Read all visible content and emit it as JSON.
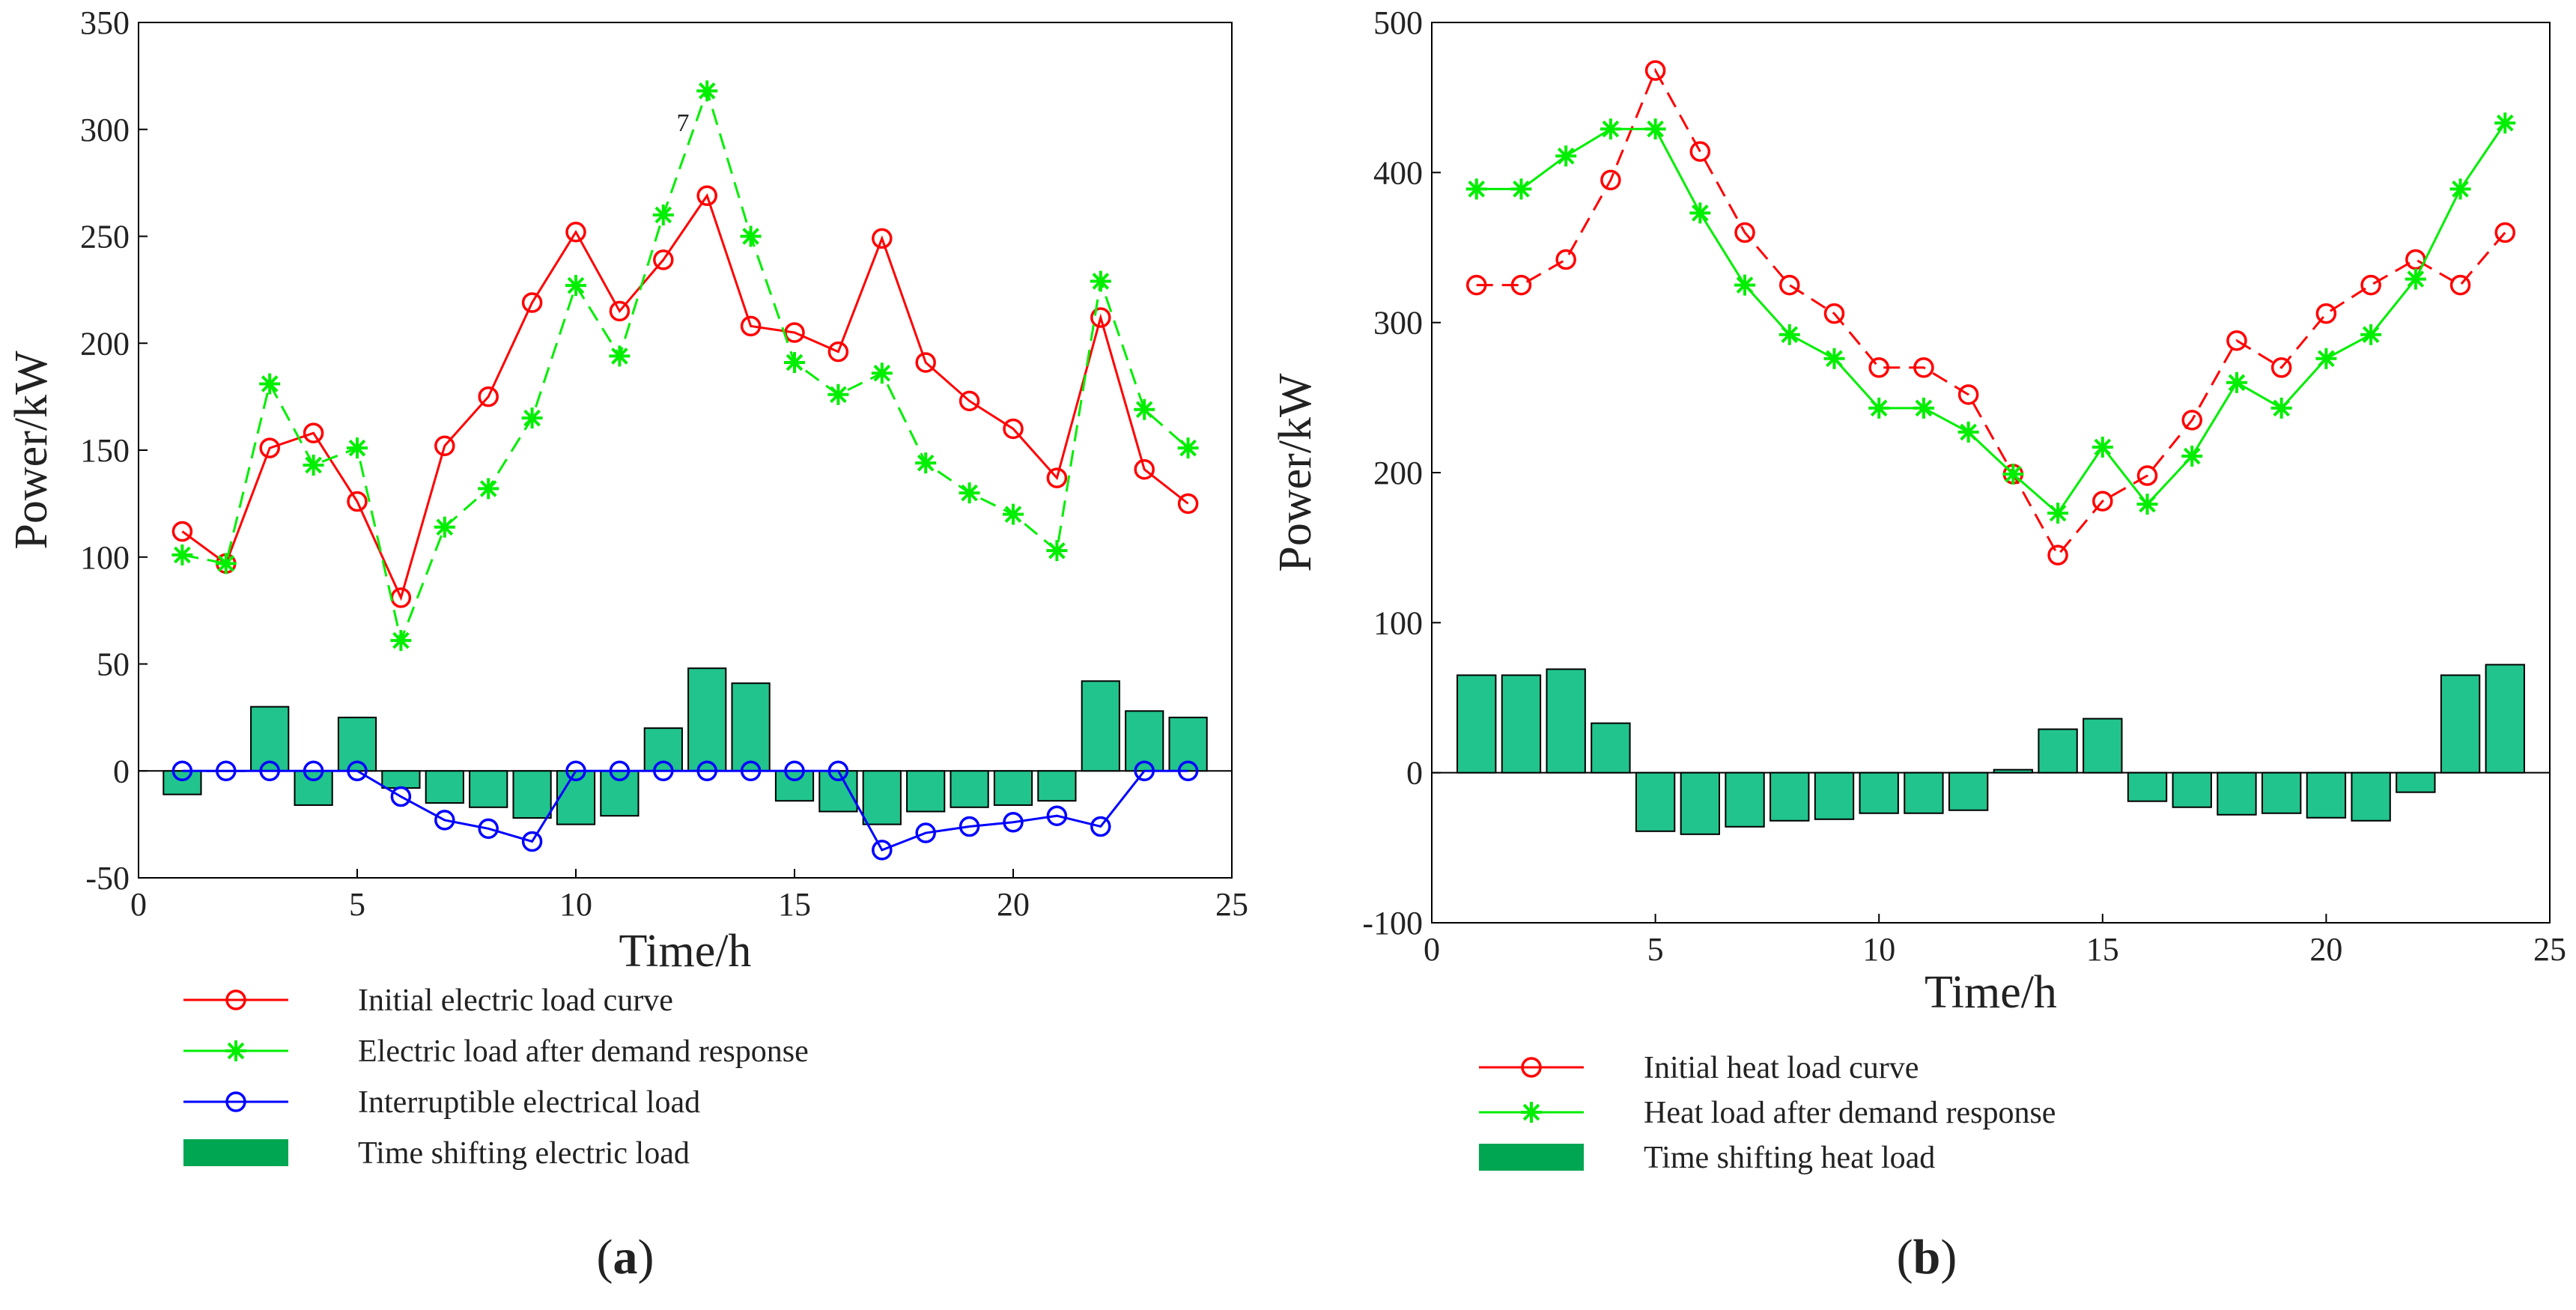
{
  "colors": {
    "initial": "#ff0000",
    "after": "#00ee00",
    "interruptible": "#0000ff",
    "bar_fill": "#21c48c",
    "bar_legend": "#00a651",
    "axis": "#000000"
  },
  "chart_data": [
    {
      "type": "bar",
      "panel_label": "a",
      "xlabel": "Time/h",
      "ylabel": "Power/kW",
      "xlim": [
        0,
        25
      ],
      "ylim": [
        -50,
        350
      ],
      "xticks": [
        0,
        5,
        10,
        15,
        20,
        25
      ],
      "yticks": [
        -50,
        0,
        50,
        100,
        150,
        200,
        250,
        300,
        350
      ],
      "grid": false,
      "legend_position": "below",
      "stray_annotation": "7",
      "x": [
        1,
        2,
        3,
        4,
        5,
        6,
        7,
        8,
        9,
        10,
        11,
        12,
        13,
        14,
        15,
        16,
        17,
        18,
        19,
        20,
        21,
        22,
        23,
        24
      ],
      "series": [
        {
          "name": "Initial electric load curve",
          "kind": "line",
          "dash": "solid",
          "marker": "circle",
          "color_key": "initial",
          "values": [
            112,
            97,
            151,
            158,
            126,
            81,
            152,
            175,
            219,
            252,
            215,
            239,
            269,
            208,
            205,
            196,
            249,
            191,
            173,
            160,
            137,
            212,
            141,
            125
          ]
        },
        {
          "name": "Electric load after demand response",
          "kind": "line",
          "dash": "dashed",
          "marker": "star",
          "color_key": "after",
          "values": [
            101,
            97,
            181,
            143,
            151,
            61,
            114,
            132,
            165,
            227,
            194,
            260,
            318,
            250,
            191,
            176,
            186,
            144,
            130,
            120,
            103,
            229,
            169,
            151
          ]
        },
        {
          "name": "Interruptible electrical load",
          "kind": "line",
          "dash": "solid",
          "marker": "circle",
          "color_key": "interruptible",
          "values": [
            0,
            0,
            0,
            0,
            0,
            -12,
            -23,
            -27,
            -33,
            0,
            0,
            0,
            0,
            0,
            0,
            0,
            -37,
            -29,
            -26,
            -24,
            -21,
            -26,
            0,
            0
          ]
        },
        {
          "name": "Time shifting electric load",
          "kind": "bar",
          "color_key": "bar_fill",
          "values": [
            -11,
            0,
            30,
            -16,
            25,
            -8,
            -15,
            -17,
            -22,
            -25,
            -21,
            20,
            48,
            41,
            -14,
            -19,
            -25,
            -19,
            -17,
            -16,
            -14,
            42,
            28,
            25
          ]
        }
      ]
    },
    {
      "type": "bar",
      "panel_label": "b",
      "xlabel": "Time/h",
      "ylabel": "Power/kW",
      "xlim": [
        0,
        25
      ],
      "ylim": [
        -100,
        500
      ],
      "xticks": [
        0,
        5,
        10,
        15,
        20,
        25
      ],
      "yticks": [
        -100,
        0,
        100,
        200,
        300,
        400,
        500
      ],
      "grid": false,
      "legend_position": "below",
      "x": [
        1,
        2,
        3,
        4,
        5,
        6,
        7,
        8,
        9,
        10,
        11,
        12,
        13,
        14,
        15,
        16,
        17,
        18,
        19,
        20,
        21,
        22,
        23,
        24
      ],
      "series": [
        {
          "name": "Initial heat load curve",
          "kind": "line",
          "dash": "dashed",
          "marker": "circle",
          "color_key": "initial",
          "values": [
            325,
            325,
            342,
            395,
            468,
            414,
            360,
            325,
            306,
            270,
            270,
            252,
            199,
            145,
            181,
            198,
            235,
            288,
            270,
            306,
            325,
            342,
            325,
            360
          ]
        },
        {
          "name": "Heat load after demand response",
          "kind": "line",
          "dash": "solid",
          "marker": "star",
          "color_key": "after",
          "values": [
            389,
            389,
            411,
            429,
            429,
            373,
            325,
            292,
            276,
            243,
            243,
            227,
            199,
            173,
            217,
            179,
            211,
            260,
            243,
            276,
            292,
            329,
            389,
            433
          ]
        },
        {
          "name": "Time shifting heat load",
          "kind": "bar",
          "color_key": "bar_fill",
          "values": [
            65,
            65,
            69,
            33,
            -39,
            -41,
            -36,
            -32,
            -31,
            -27,
            -27,
            -25,
            2,
            29,
            36,
            -19,
            -23,
            -28,
            -27,
            -30,
            -32,
            -13,
            65,
            72
          ]
        }
      ]
    }
  ]
}
